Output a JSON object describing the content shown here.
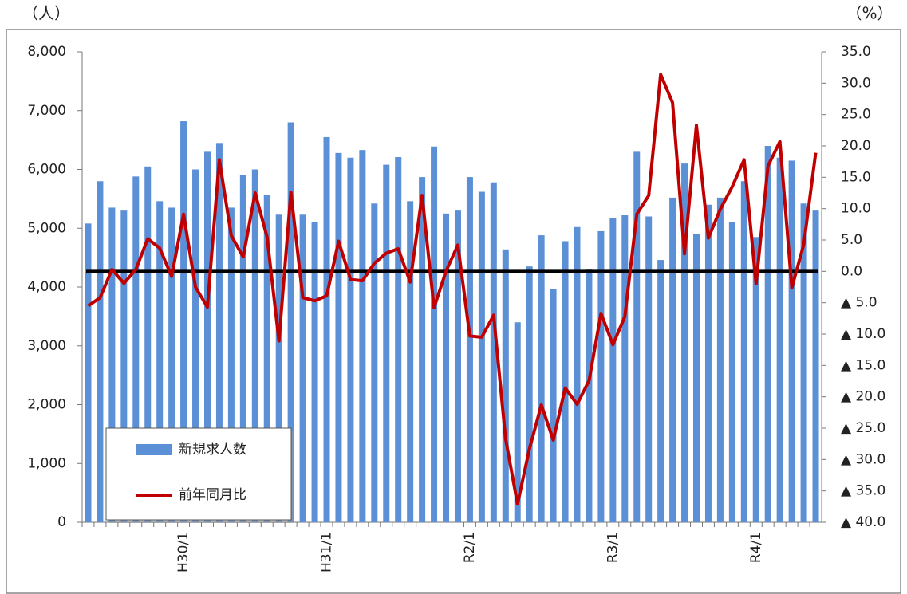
{
  "chart_data": {
    "type": "bar-line",
    "left_unit": "（人）",
    "right_unit": "（%）",
    "categories": [
      null,
      null,
      null,
      null,
      null,
      null,
      null,
      null,
      "H30/1",
      null,
      null,
      null,
      null,
      null,
      null,
      null,
      null,
      null,
      null,
      null,
      "H31/1",
      null,
      null,
      null,
      null,
      null,
      null,
      null,
      null,
      null,
      null,
      null,
      "R2/1",
      null,
      null,
      null,
      null,
      null,
      null,
      null,
      null,
      null,
      null,
      null,
      "R3/1",
      null,
      null,
      null,
      null,
      null,
      null,
      null,
      null,
      null,
      null,
      null,
      "R4/1",
      null,
      null,
      null,
      null,
      null
    ],
    "series": [
      {
        "name": "新規求人数",
        "color": "#5b8fd6",
        "type": "bar",
        "axis": "y",
        "values": [
          5080,
          5800,
          5350,
          5300,
          5880,
          6050,
          5460,
          5350,
          6820,
          6000,
          6300,
          6450,
          5350,
          5900,
          6000,
          5570,
          5230,
          6800,
          5230,
          5100,
          6550,
          6280,
          6200,
          6330,
          5420,
          6080,
          6210,
          5460,
          5870,
          6390,
          5250,
          5300,
          5870,
          5620,
          5780,
          4640,
          3400,
          4350,
          4880,
          3960,
          4780,
          5020,
          4310,
          4950,
          5170,
          5220,
          6300,
          5200,
          4460,
          5520,
          6100,
          4900,
          5400,
          5520,
          5100,
          5800,
          4850,
          6400,
          6200,
          6150,
          5420,
          5300
        ]
      },
      {
        "name": "前年同月比",
        "color": "#c00000",
        "type": "line",
        "axis": "y2",
        "values": [
          -5.5,
          -4.2,
          0.3,
          -1.9,
          0.3,
          5.2,
          3.7,
          -0.8,
          9.1,
          -2.5,
          -5.7,
          17.8,
          5.7,
          2.3,
          12.5,
          5.5,
          -11.1,
          12.6,
          -4.2,
          -4.7,
          -3.9,
          4.8,
          -1.3,
          -1.5,
          1.3,
          2.9,
          3.6,
          -1.7,
          12.1,
          -5.8,
          0,
          4.2,
          -10.3,
          -10.5,
          -7.0,
          -26.7,
          -37.1,
          -28.3,
          -21.3,
          -26.9,
          -18.6,
          -21.2,
          -17.4,
          -6.7,
          -11.7,
          -7.2,
          9.1,
          12.1,
          31.4,
          26.9,
          2.8,
          23.3,
          5.3,
          9.9,
          13.5,
          17.8,
          -2.0,
          16.8,
          20.7,
          -2.6,
          4.3,
          18.9
        ]
      }
    ],
    "ylim": [
      0,
      8000
    ],
    "yticks": [
      0,
      {
        "value": 1000,
        "label": "1,000"
      },
      {
        "value": 2000,
        "label": "2,000"
      },
      {
        "value": 3000,
        "label": "3,000"
      },
      {
        "value": 4000,
        "label": "4,000"
      },
      {
        "value": 5000,
        "label": "5,000"
      },
      {
        "value": 6000,
        "label": "6,000"
      },
      {
        "value": 7000,
        "label": "7,000"
      },
      {
        "value": 8000,
        "label": "8,000"
      }
    ],
    "y2lim": [
      -40,
      35
    ],
    "y2ticks": [
      {
        "value": 35,
        "label": "35.0"
      },
      {
        "value": 30,
        "label": "30.0"
      },
      {
        "value": 25,
        "label": "25.0"
      },
      {
        "value": 20,
        "label": "20.0"
      },
      {
        "value": 15,
        "label": "15.0"
      },
      {
        "value": 10,
        "label": "10.0"
      },
      {
        "value": 5,
        "label": "5.0"
      },
      {
        "value": 0,
        "label": "0.0"
      },
      {
        "value": -5,
        "label": "▲ 5.0"
      },
      {
        "value": -10,
        "label": "▲ 10.0"
      },
      {
        "value": -15,
        "label": "▲ 15.0"
      },
      {
        "value": -20,
        "label": "▲ 20.0"
      },
      {
        "value": -25,
        "label": "▲ 25.0"
      },
      {
        "value": -30,
        "label": "▲ 30.0"
      },
      {
        "value": -35,
        "label": "▲ 35.0"
      },
      {
        "value": -40,
        "label": "▲ 40.0"
      }
    ],
    "zero_line_color": "#000000"
  }
}
